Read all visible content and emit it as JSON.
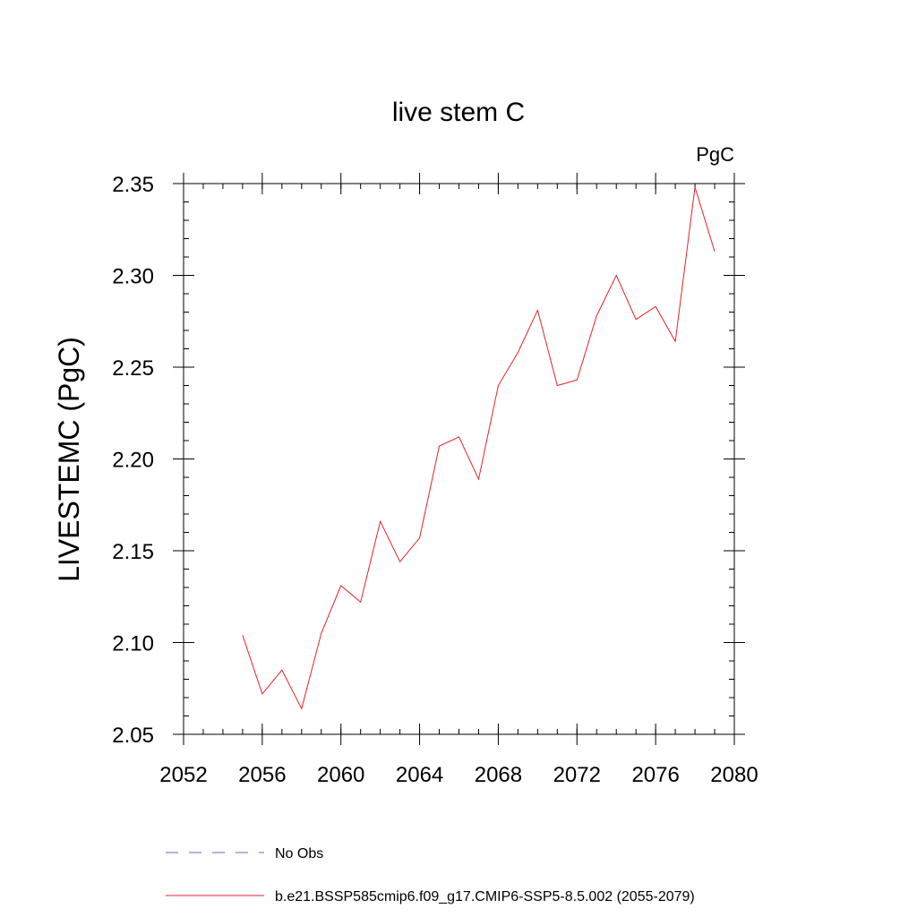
{
  "chart_data": {
    "type": "line",
    "title": "live stem C",
    "units_label": "PgC",
    "ylabel": "LIVESTEMC  (PgC)",
    "xlabel": "",
    "xlim": [
      2052,
      2080
    ],
    "ylim": [
      2.05,
      2.35
    ],
    "x_ticks": [
      2052,
      2056,
      2060,
      2064,
      2068,
      2072,
      2076,
      2080
    ],
    "x_tick_labels": [
      "2052",
      "2056",
      "2060",
      "2064",
      "2068",
      "2072",
      "2076",
      "2080"
    ],
    "y_ticks": [
      2.05,
      2.1,
      2.15,
      2.2,
      2.25,
      2.3,
      2.35
    ],
    "y_tick_labels": [
      "2.05",
      "2.10",
      "2.15",
      "2.20",
      "2.25",
      "2.30",
      "2.35"
    ],
    "x_minor_step": 1,
    "y_minor_step": 0.01,
    "grid": false,
    "legend_position": "bottom",
    "legend": [
      {
        "label": "No Obs",
        "style": "dashed",
        "color": "#6666cc"
      },
      {
        "label": "b.e21.BSSP585cmip6.f09_g17.CMIP6-SSP5-8.5.002 (2055-2079)",
        "style": "solid",
        "color": "#e8212a"
      }
    ],
    "series": [
      {
        "name": "b.e21.BSSP585cmip6.f09_g17.CMIP6-SSP5-8.5.002 (2055-2079)",
        "color": "#e8212a",
        "x": [
          2055,
          2056,
          2057,
          2058,
          2059,
          2060,
          2061,
          2062,
          2063,
          2064,
          2065,
          2066,
          2067,
          2068,
          2069,
          2070,
          2071,
          2072,
          2073,
          2074,
          2075,
          2076,
          2077,
          2078,
          2079
        ],
        "values": [
          2.104,
          2.072,
          2.085,
          2.064,
          2.105,
          2.131,
          2.122,
          2.166,
          2.144,
          2.157,
          2.207,
          2.212,
          2.189,
          2.24,
          2.258,
          2.281,
          2.24,
          2.243,
          2.278,
          2.3,
          2.276,
          2.283,
          2.264,
          2.348,
          2.313
        ]
      }
    ]
  }
}
